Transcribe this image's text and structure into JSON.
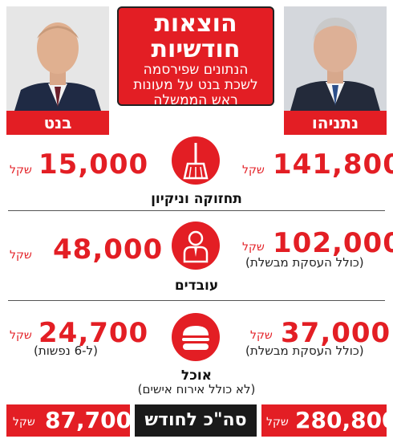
{
  "title": {
    "main_line1": "הוצאות",
    "main_line2": "חודשיות",
    "sub_line1": "הנתונים שפירסמה",
    "sub_line2": "לשכת בנט על מעונות",
    "sub_line3": "ראש הממשלה"
  },
  "people": {
    "right_name": "נתניהו",
    "left_name": "בנט"
  },
  "unit": "שקל",
  "categories": [
    {
      "label": "תחזוקה וניקיון",
      "sublabel": "",
      "icon": "broom-icon",
      "right_value": "141,800",
      "right_note": "",
      "left_value": "15,000",
      "left_note": ""
    },
    {
      "label": "עובדים",
      "sublabel": "",
      "icon": "worker-icon",
      "right_value": "102,000",
      "right_note": "(כולל העסקת מבשלת)",
      "left_value": "48,000",
      "left_note": ""
    },
    {
      "label": "אוכל",
      "sublabel": "(לא כולל אירוח אישים)",
      "icon": "burger-icon",
      "right_value": "37,000",
      "right_note": "(כולל העסקת מבשלת)",
      "left_value": "24,700",
      "left_note": "(ל-6 נפשות)"
    }
  ],
  "totals": {
    "label": "סה\"כ לחודש",
    "right_value": "280,800",
    "left_value": "87,700"
  },
  "colors": {
    "accent": "#e31e24",
    "dark": "#1a1a1a"
  }
}
